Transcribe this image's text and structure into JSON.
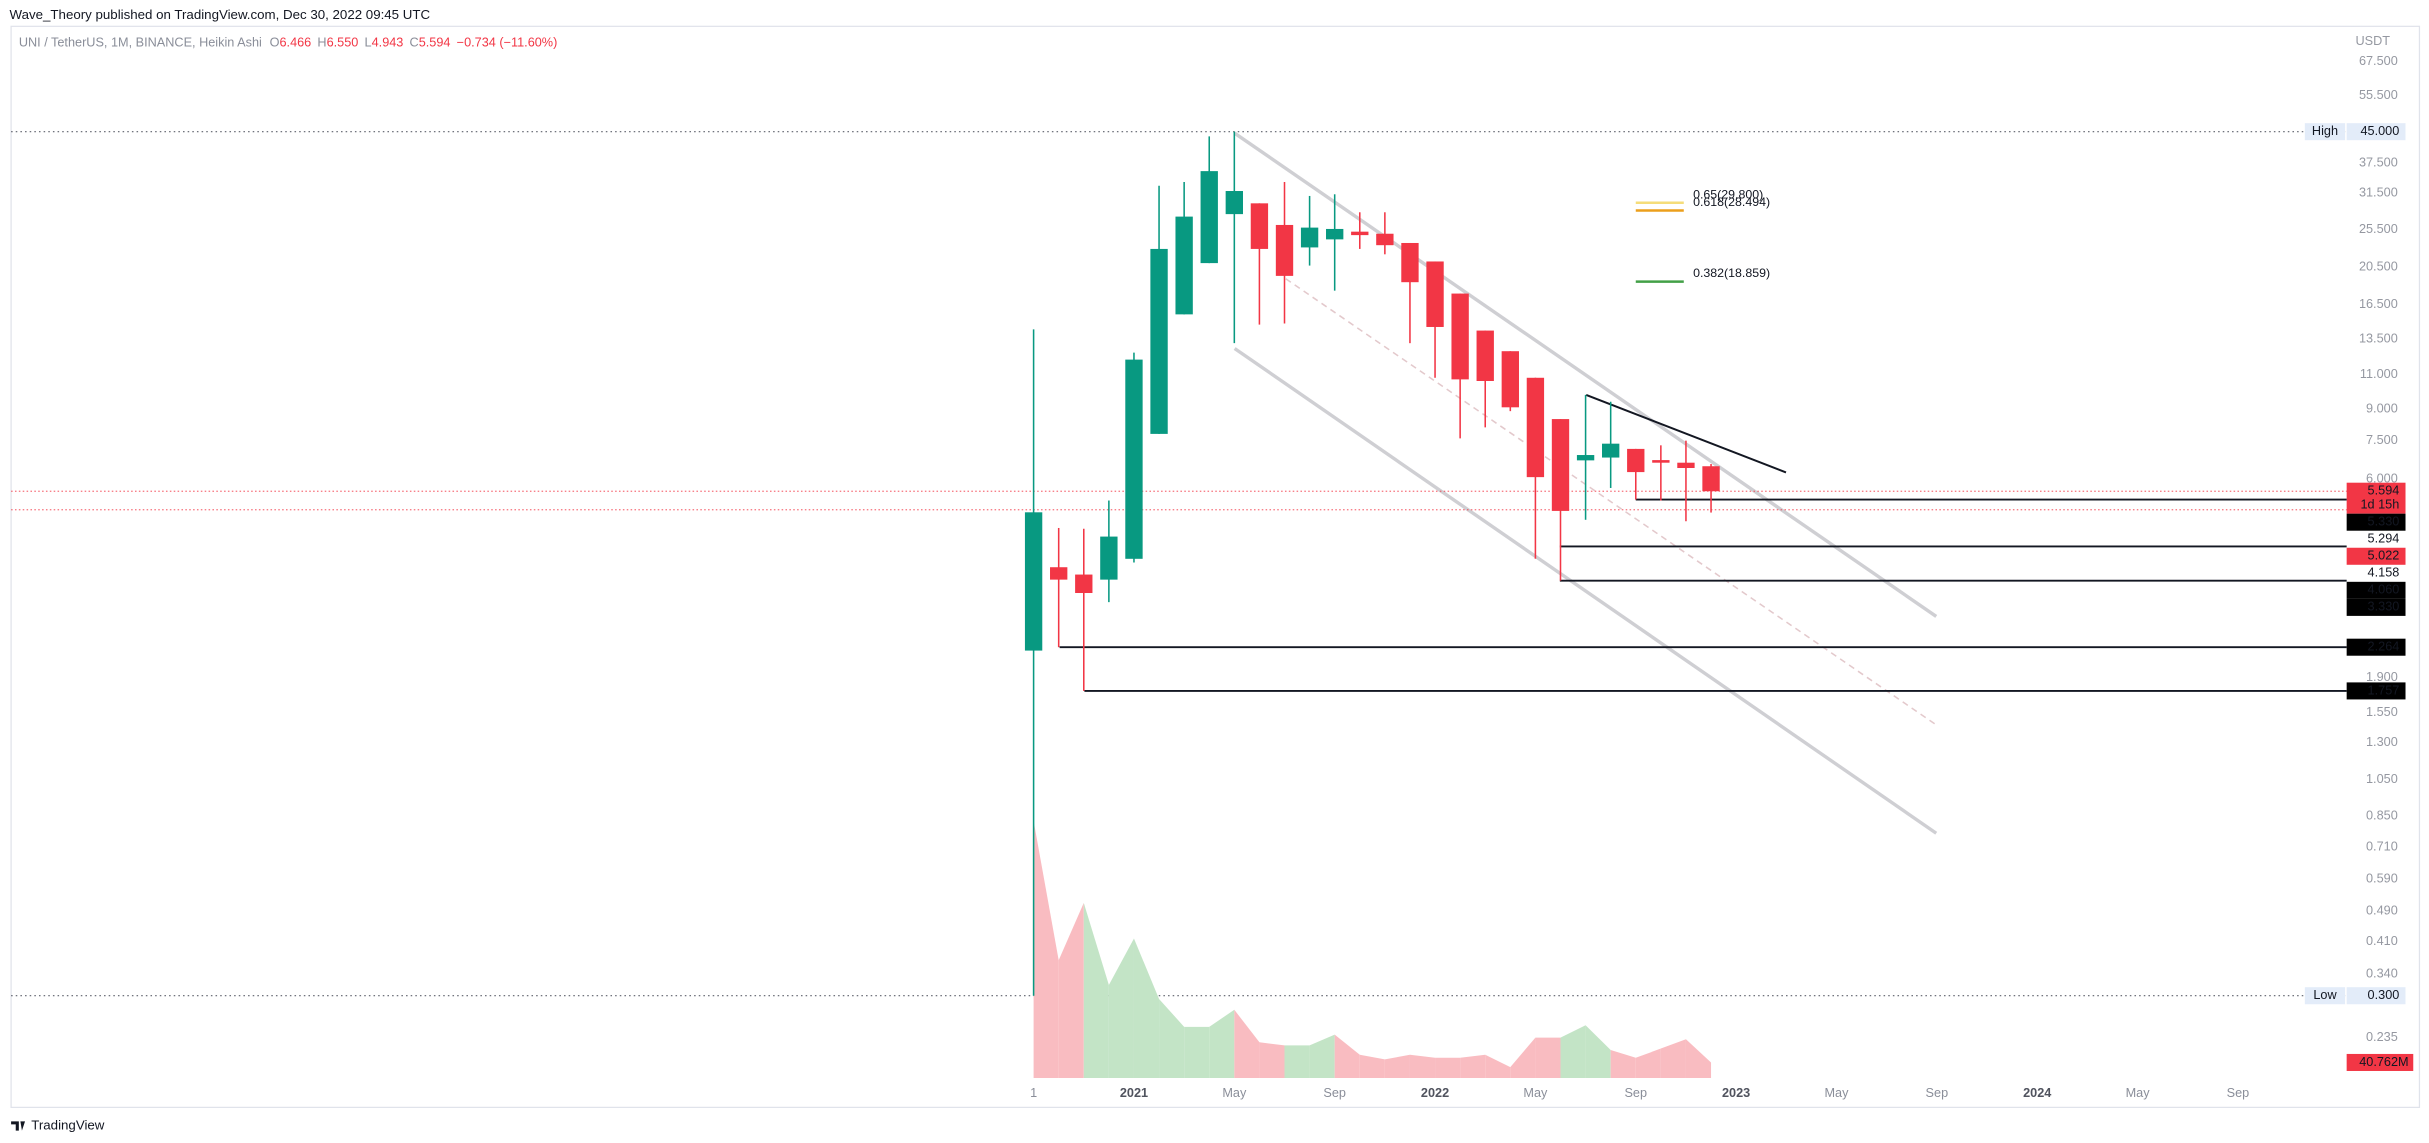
{
  "header": {
    "title": "Wave_Theory published on TradingView.com, Dec 30, 2022 09:45 UTC"
  },
  "footer": {
    "brand": "TradingView"
  },
  "chart_data": {
    "type": "candlestick",
    "legend": {
      "symbol": "UNI / TetherUS, 1M, BINANCE, Heikin Ashi",
      "fields": [
        {
          "name": "O",
          "value": "6.466"
        },
        {
          "name": "H",
          "value": "6.550"
        },
        {
          "name": "L",
          "value": "4.943"
        },
        {
          "name": "C",
          "value": "5.594"
        }
      ],
      "change": "−0.734 (−11.60%)"
    },
    "y_label": "USDT",
    "log_scale": true,
    "grid": false,
    "up_color": "#089981",
    "down_color": "#f23645",
    "xlim": [
      "2017-04",
      "2025-01"
    ],
    "ylim": [
      0.157,
      82.9
    ],
    "xticks": [
      {
        "value": "2020-09",
        "label": "1"
      },
      {
        "value": "2021-01",
        "label": "2021"
      },
      {
        "value": "2021-05",
        "label": "May"
      },
      {
        "value": "2021-09",
        "label": "Sep"
      },
      {
        "value": "2022-01",
        "label": "2022"
      },
      {
        "value": "2022-05",
        "label": "May"
      },
      {
        "value": "2022-09",
        "label": "Sep"
      },
      {
        "value": "2023-01",
        "label": "2023"
      },
      {
        "value": "2023-05",
        "label": "May"
      },
      {
        "value": "2023-09",
        "label": "Sep"
      },
      {
        "value": "2024-01",
        "label": "2024"
      },
      {
        "value": "2024-05",
        "label": "May"
      },
      {
        "value": "2024-09",
        "label": "Sep"
      }
    ],
    "yticks": [
      {
        "value": 67.5,
        "label": "67.500"
      },
      {
        "value": 55.5,
        "label": "55.500"
      },
      {
        "value": 37.5,
        "label": "37.500"
      },
      {
        "value": 31.5,
        "label": "31.500"
      },
      {
        "value": 25.5,
        "label": "25.500"
      },
      {
        "value": 20.5,
        "label": "20.500"
      },
      {
        "value": 16.5,
        "label": "16.500"
      },
      {
        "value": 13.5,
        "label": "13.500"
      },
      {
        "value": 11,
        "label": "11.000"
      },
      {
        "value": 9,
        "label": "9.000"
      },
      {
        "value": 7.5,
        "label": "7.500"
      },
      {
        "value": 6,
        "label": "6.000"
      },
      {
        "value": 1.9,
        "label": "1.900"
      },
      {
        "value": 1.55,
        "label": "1.550"
      },
      {
        "value": 1.3,
        "label": "1.300"
      },
      {
        "value": 1.05,
        "label": "1.050"
      },
      {
        "value": 0.85,
        "label": "0.850"
      },
      {
        "value": 0.71,
        "label": "0.710"
      },
      {
        "value": 0.59,
        "label": "0.590"
      },
      {
        "value": 0.49,
        "label": "0.490"
      },
      {
        "value": 0.41,
        "label": "0.410"
      },
      {
        "value": 0.34,
        "label": "0.340"
      },
      {
        "value": 0.235,
        "label": "0.235"
      }
    ],
    "candles": {
      "x": [
        "2020-09",
        "2020-10",
        "2020-11",
        "2020-12",
        "2021-01",
        "2021-02",
        "2021-03",
        "2021-04",
        "2021-05",
        "2021-06",
        "2021-07",
        "2021-08",
        "2021-09",
        "2021-10",
        "2021-11",
        "2021-12",
        "2022-01",
        "2022-02",
        "2022-03",
        "2022-04",
        "2022-05",
        "2022-06",
        "2022-07",
        "2022-08",
        "2022-09",
        "2022-10",
        "2022-11",
        "2022-12"
      ],
      "open": [
        2.22,
        3.6,
        3.45,
        3.35,
        3.78,
        7.8,
        15.6,
        21.0,
        27.9,
        29.7,
        26.2,
        23.0,
        24.1,
        25.2,
        24.9,
        23.6,
        21.2,
        17.6,
        14.2,
        12.6,
        10.8,
        8.5,
        6.69,
        6.8,
        7.15,
        6.7,
        6.6,
        6.466
      ],
      "high": [
        14.3,
        4.52,
        4.5,
        5.3,
        12.5,
        32.9,
        33.6,
        43.8,
        45,
        29.7,
        33.6,
        31.0,
        31.3,
        28.2,
        28.2,
        23.6,
        21.2,
        17.6,
        14.2,
        12.6,
        10.8,
        8.5,
        9.78,
        9.4,
        7.15,
        7.3,
        7.5,
        6.55
      ],
      "low": [
        0.3,
        2.264,
        1.757,
        2.94,
        3.7,
        7.8,
        15.6,
        21.0,
        13.2,
        14.7,
        14.8,
        20.7,
        17.9,
        22.8,
        22.1,
        13.2,
        10.8,
        7.6,
        8.1,
        8.9,
        3.78,
        3.33,
        4.74,
        5.7,
        5.33,
        5.3,
        4.7,
        4.943
      ],
      "close": [
        4.95,
        3.35,
        3.1,
        4.3,
        12.0,
        22.8,
        27.5,
        35.8,
        31.9,
        22.8,
        19.5,
        25.8,
        25.6,
        24.7,
        23.3,
        18.8,
        14.5,
        10.7,
        10.6,
        9.1,
        6.07,
        4.99,
        6.9,
        7.37,
        6.25,
        6.6,
        6.4,
        5.594
      ]
    },
    "volume": {
      "values": [
        676600000,
        309800000,
        460600000,
        244600000,
        366900000,
        207900000,
        134500000,
        134500000,
        179400000,
        93800000,
        85600000,
        85600000,
        114100000,
        61100000,
        48900000,
        61100000,
        53000000,
        53000000,
        61100000,
        28500000,
        106000000,
        106000000,
        138600000,
        73400000,
        53000000,
        77400000,
        101900000,
        40762000
      ],
      "value_labels": [
        null,
        null,
        null,
        null,
        null,
        null,
        null,
        null,
        null,
        null,
        null,
        null,
        null,
        null,
        null,
        null,
        null,
        null,
        null,
        null,
        null,
        null,
        null,
        null,
        null,
        null,
        null,
        "40.762M"
      ],
      "colors": [
        "#f9bcc1",
        "#f9bcc1",
        "#c3e4c6",
        "#c3e4c6",
        "#c3e4c6",
        "#c3e4c6",
        "#c3e4c6",
        "#c3e4c6",
        "#f9bcc1",
        "#f9bcc1",
        "#c3e4c6",
        "#c3e4c6",
        "#f9bcc1",
        "#f9bcc1",
        "#f9bcc1",
        "#f9bcc1",
        "#f9bcc1",
        "#f9bcc1",
        "#f9bcc1",
        "#f9bcc1",
        "#f9bcc1",
        "#c3e4c6",
        "#c3e4c6",
        "#f9bcc1",
        "#f9bcc1",
        "#f9bcc1",
        "#f9bcc1",
        "#f9bcc1"
      ]
    },
    "extremes": [
      {
        "name": "High",
        "value": 45,
        "label": "45.000"
      },
      {
        "name": "Low",
        "value": 0.3,
        "label": "0.300"
      }
    ],
    "price_tags": [
      {
        "value": 5.594,
        "label": "5.594",
        "countdown": "1d 15h",
        "style": "red"
      },
      {
        "value": 5.33,
        "label": "5.330",
        "style": "black",
        "line": true
      },
      {
        "value": 5.294,
        "label": "5.294",
        "style": "plain"
      },
      {
        "value": 5.022,
        "label": "5.022",
        "style": "red"
      },
      {
        "value": 4.158,
        "label": "4.158",
        "style": "plain"
      },
      {
        "value": 4.06,
        "label": "4.060",
        "style": "black",
        "line": true
      },
      {
        "value": 3.33,
        "label": "3.330",
        "style": "black",
        "line": true
      },
      {
        "value": 2.264,
        "label": "2.264",
        "style": "black",
        "line": true
      },
      {
        "value": 1.757,
        "label": "1.757",
        "style": "black",
        "line": true
      }
    ],
    "fib_levels": [
      {
        "value": 29.8,
        "label": "0.65(29.800)",
        "color": "#f5dd7a"
      },
      {
        "value": 28.494,
        "label": "0.618(28.494)",
        "color": "#ec9f1c"
      },
      {
        "value": 18.859,
        "label": "0.382(18.859)",
        "color": "#43a047"
      }
    ]
  }
}
